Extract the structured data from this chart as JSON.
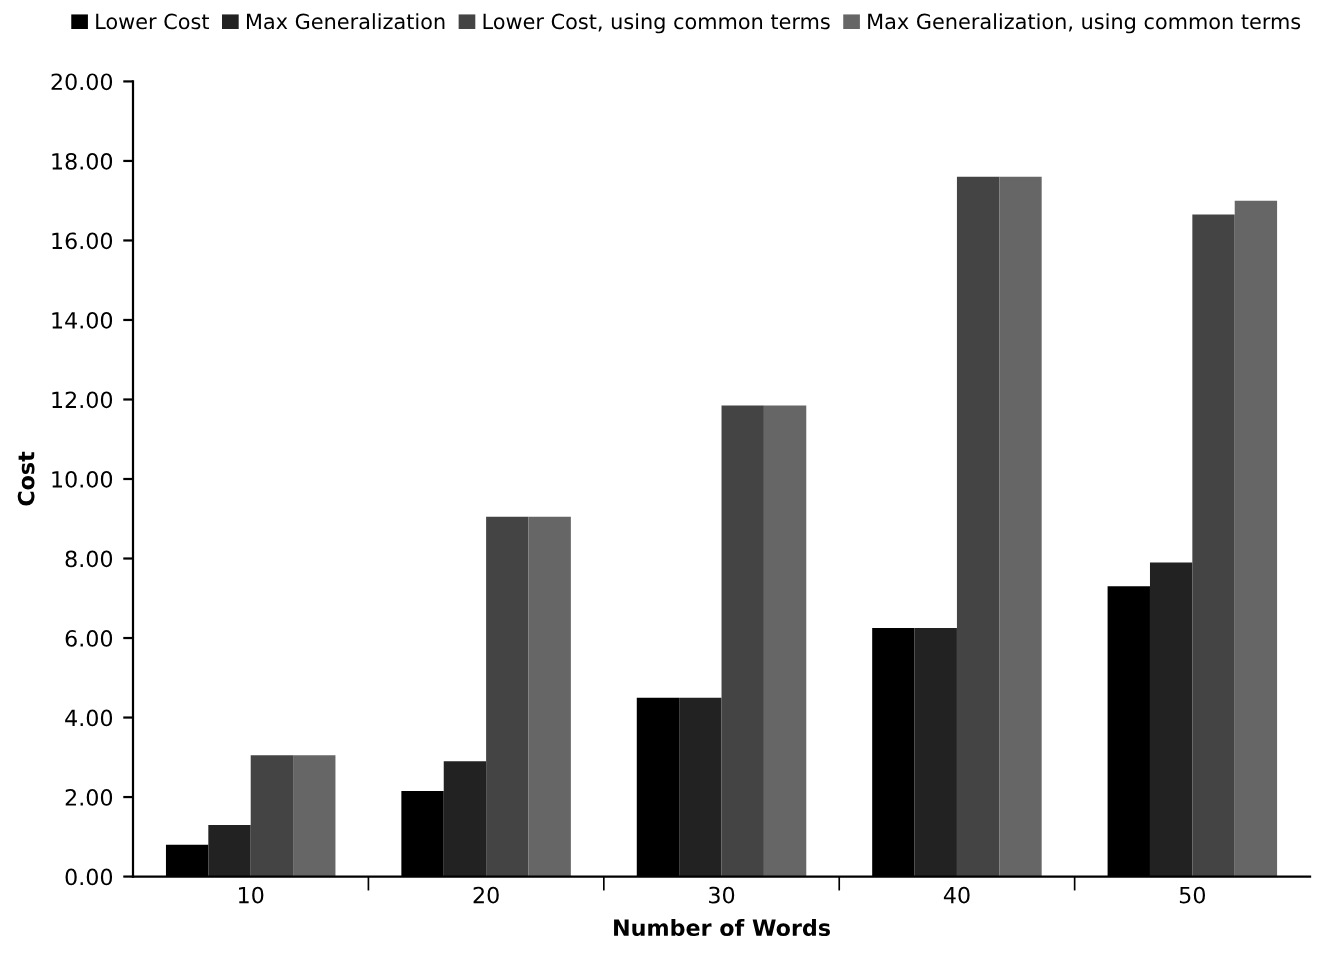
{
  "chart_data": {
    "type": "bar",
    "xlabel": "Number of Words",
    "ylabel": "Cost",
    "categories": [
      "10",
      "20",
      "30",
      "40",
      "50"
    ],
    "series": [
      {
        "name": "Lower Cost",
        "color": "#000000",
        "values": [
          0.8,
          2.15,
          4.5,
          6.25,
          7.3
        ]
      },
      {
        "name": "Max Generalization",
        "color": "#222222",
        "values": [
          1.3,
          2.9,
          4.5,
          6.25,
          7.9
        ]
      },
      {
        "name": "Lower Cost, using common terms",
        "color": "#444444",
        "values": [
          3.05,
          9.05,
          11.85,
          17.6,
          16.65
        ]
      },
      {
        "name": "Max Generalization, using common terms",
        "color": "#666666",
        "values": [
          3.05,
          9.05,
          11.85,
          17.6,
          17.0
        ]
      }
    ],
    "ylim": [
      0,
      20
    ],
    "yticks": [
      {
        "value": 0,
        "label": "0.00"
      },
      {
        "value": 2,
        "label": "2.00"
      },
      {
        "value": 4,
        "label": "4.00"
      },
      {
        "value": 6,
        "label": "6.00"
      },
      {
        "value": 8,
        "label": "8.00"
      },
      {
        "value": 10,
        "label": "10.00"
      },
      {
        "value": 12,
        "label": "12.00"
      },
      {
        "value": 14,
        "label": "14.00"
      },
      {
        "value": 16,
        "label": "16.00"
      },
      {
        "value": 18,
        "label": "18.00"
      },
      {
        "value": 20,
        "label": "20.00"
      }
    ],
    "grid": false,
    "legend": "top"
  }
}
